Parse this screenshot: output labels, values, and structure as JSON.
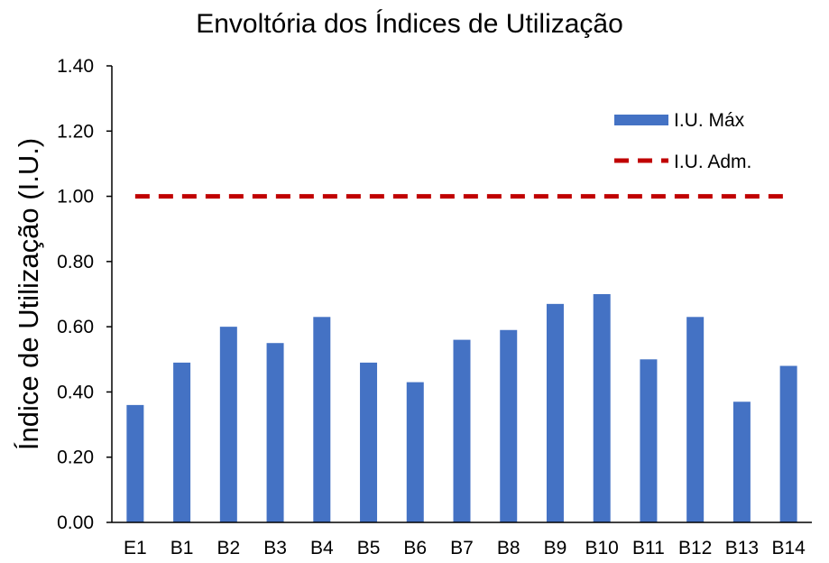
{
  "chart_data": {
    "type": "bar",
    "title": "Envoltória dos Índices de Utilização",
    "xlabel": "",
    "ylabel": "Índice de Utilização (I.U.)",
    "ylim": [
      0,
      1.4
    ],
    "yticks": [
      0,
      0.2,
      0.4,
      0.6,
      0.8,
      1.0,
      1.2,
      1.4
    ],
    "ytick_labels": [
      "0.00",
      "0.20",
      "0.40",
      "0.60",
      "0.80",
      "1.00",
      "1.20",
      "1.40"
    ],
    "categories": [
      "E1",
      "B1",
      "B2",
      "B3",
      "B4",
      "B5",
      "B6",
      "B7",
      "B8",
      "B9",
      "B10",
      "B11",
      "B12",
      "B13",
      "B14"
    ],
    "series": [
      {
        "name": "I.U. Máx",
        "kind": "bar",
        "color": "#4472C4",
        "values": [
          0.36,
          0.49,
          0.6,
          0.55,
          0.63,
          0.49,
          0.43,
          0.56,
          0.59,
          0.67,
          0.7,
          0.5,
          0.63,
          0.37,
          0.48
        ]
      },
      {
        "name": "I.U. Adm.",
        "kind": "line",
        "style": "dashed",
        "color": "#C00000",
        "values": [
          1.0,
          1.0,
          1.0,
          1.0,
          1.0,
          1.0,
          1.0,
          1.0,
          1.0,
          1.0,
          1.0,
          1.0,
          1.0,
          1.0,
          1.0
        ]
      }
    ],
    "grid": false,
    "legend": {
      "position": "top-right"
    }
  }
}
